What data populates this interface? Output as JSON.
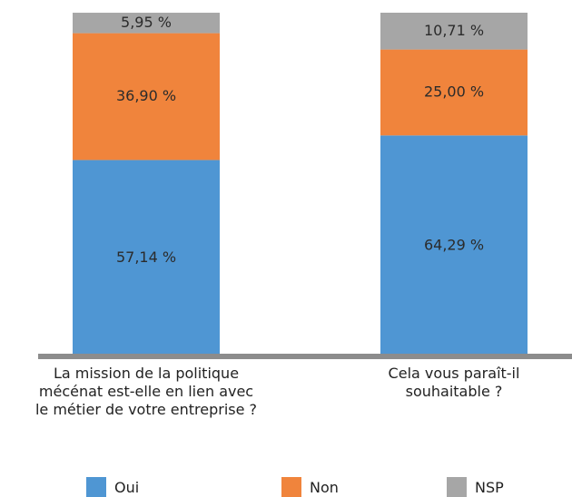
{
  "chart_data": {
    "type": "stacked_bar",
    "categories": [
      "La mission de la politique mécénat est-elle en lien avec le métier de votre entreprise ?",
      "Cela vous paraît-il souhaitable ?"
    ],
    "series": [
      {
        "name": "Oui",
        "color": "#4f96d3",
        "values": [
          57.14,
          64.29
        ],
        "value_labels": [
          "57,14 %",
          "64,29 %"
        ]
      },
      {
        "name": "Non",
        "color": "#f0843c",
        "values": [
          36.9,
          25.0
        ],
        "value_labels": [
          "36,90 %",
          "25,00 %"
        ]
      },
      {
        "name": "NSP",
        "color": "#a6a6a6",
        "values": [
          5.95,
          10.71
        ],
        "value_labels": [
          "5,95 %",
          "10,71 %"
        ]
      }
    ],
    "ylim": [
      0,
      100
    ],
    "legend": "bottom"
  }
}
